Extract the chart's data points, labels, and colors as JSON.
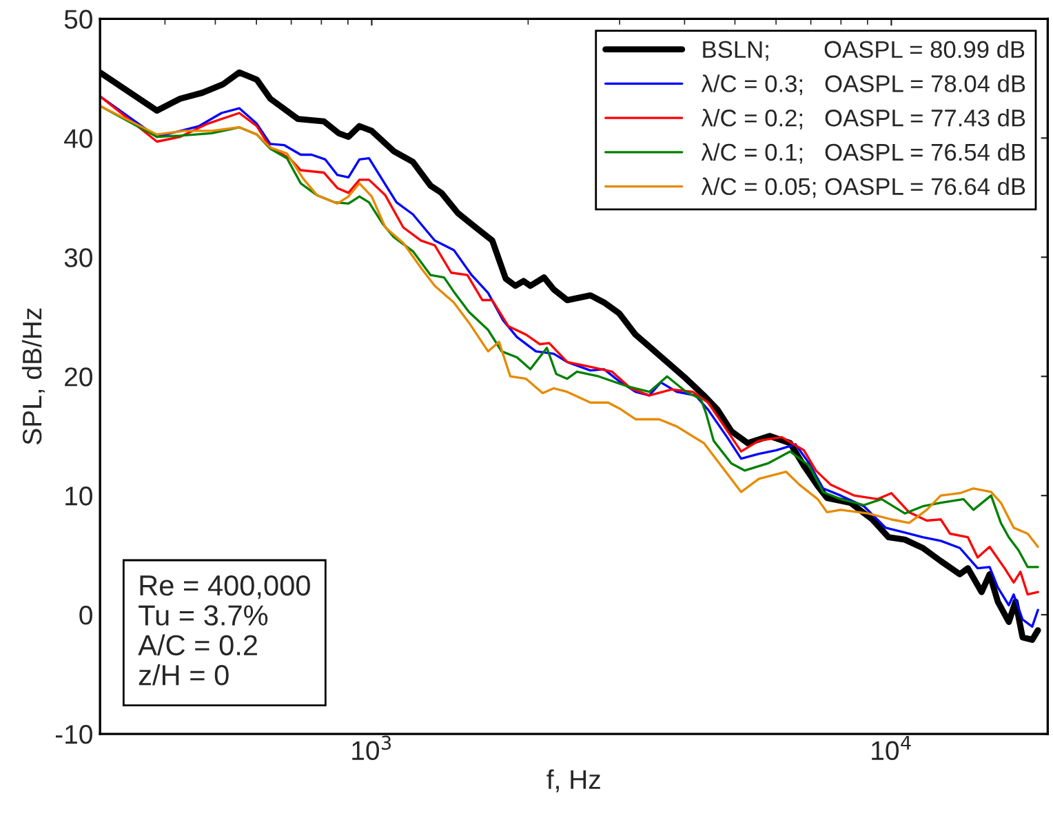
{
  "chart_data": {
    "type": "line",
    "xlabel": "f, Hz",
    "ylabel": "SPL, dB/Hz",
    "log": "x",
    "xlim": [
      300,
      20000
    ],
    "xticks": [
      {
        "value": 1000,
        "label": "10$^{3}$"
      },
      {
        "value": 10000,
        "label": "10$^{4}$"
      }
    ],
    "ylim": [
      -10,
      50
    ],
    "yticks": [
      -10,
      0,
      10,
      20,
      30,
      40,
      50
    ],
    "grid": false,
    "legend": "top right",
    "line_style": "solid",
    "marker": "none",
    "annotations": [
      "Re = 400,000\nTu = 3.7%\nA/C = 0.2\nz/H = 0"
    ],
    "series": [
      {
        "name": "BSLN;        OASPL = 80.99 dB",
        "color": "#000000",
        "x": [
          300,
          386,
          428,
          472,
          517,
          556,
          601,
          638,
          721,
          809,
          864,
          902,
          947,
          1000,
          1102,
          1200,
          1298,
          1362,
          1465,
          1585,
          1706,
          1811,
          1890,
          1960,
          2020,
          2146,
          2240,
          2378,
          2636,
          2800,
          2993,
          3219,
          3422,
          3702,
          4030,
          4358,
          4630,
          4921,
          5293,
          5834,
          6385,
          6788,
          7217,
          7520,
          8340,
          9190,
          9880,
          10620,
          11500,
          12450,
          13550,
          14040,
          14920,
          15460,
          16030,
          16830,
          17340,
          17890,
          18670,
          19150
        ],
        "values": [
          45.5,
          42.3,
          43.3,
          43.8,
          44.5,
          45.5,
          44.9,
          43.3,
          41.6,
          41.4,
          40.4,
          40.1,
          41.0,
          40.6,
          38.9,
          38.0,
          36.0,
          35.4,
          33.7,
          32.5,
          31.4,
          28.2,
          27.6,
          28.0,
          27.6,
          28.3,
          27.3,
          26.4,
          26.8,
          26.2,
          25.3,
          23.5,
          22.5,
          21.2,
          19.8,
          18.4,
          17.2,
          15.4,
          14.4,
          15.0,
          14.4,
          12.5,
          10.8,
          9.8,
          9.4,
          8.0,
          6.5,
          6.3,
          5.6,
          4.5,
          3.4,
          3.9,
          1.9,
          3.4,
          1.1,
          -0.6,
          1.1,
          -1.9,
          -2.1,
          -1.3
        ]
      },
      {
        "name": "λ/C = 0.3;   OASPL = 78.04 dB",
        "color": "#0000ff",
        "x": [
          300,
          386,
          465,
          514,
          556,
          601,
          638,
          679,
          730,
          766,
          814,
          859,
          902,
          947,
          988,
          1116,
          1200,
          1322,
          1439,
          1557,
          1675,
          1790,
          1903,
          2070,
          2240,
          2378,
          2636,
          2800,
          2993,
          3219,
          3422,
          3600,
          3864,
          4200,
          4440,
          4830,
          5140,
          5560,
          6010,
          6540,
          6950,
          7390,
          7990,
          8860,
          9750,
          10620,
          11500,
          12450,
          13550,
          14660,
          15460,
          16030,
          16830,
          17200,
          17890,
          18670,
          19150
        ],
        "values": [
          43.5,
          40.1,
          41.0,
          42.1,
          42.5,
          41.2,
          39.5,
          39.4,
          38.6,
          38.6,
          38.2,
          36.9,
          36.7,
          38.2,
          38.3,
          34.6,
          33.6,
          31.4,
          30.6,
          28.5,
          27.0,
          24.7,
          23.3,
          22.1,
          21.9,
          21.2,
          20.5,
          20.6,
          19.6,
          18.7,
          18.4,
          19.5,
          18.7,
          18.4,
          17.2,
          14.9,
          13.1,
          13.5,
          13.8,
          14.3,
          12.7,
          10.6,
          10.0,
          9.1,
          7.3,
          6.9,
          6.5,
          6.2,
          5.6,
          3.9,
          4.0,
          2.3,
          0.8,
          1.7,
          -0.4,
          -1.0,
          0.4
        ]
      },
      {
        "name": "λ/C = 0.2;   OASPL = 77.43 dB",
        "color": "#ff0000",
        "x": [
          300,
          386,
          428,
          483,
          556,
          601,
          638,
          695,
          730,
          809,
          859,
          902,
          947,
          988,
          1062,
          1150,
          1244,
          1322,
          1422,
          1528,
          1633,
          1706,
          1833,
          1982,
          2107,
          2195,
          2378,
          2636,
          2900,
          3150,
          3422,
          3780,
          4150,
          4440,
          4720,
          5140,
          5560,
          6150,
          6788,
          7160,
          7650,
          8490,
          9410,
          10000,
          10820,
          11700,
          12450,
          12970,
          14040,
          14660,
          15460,
          16520,
          17200,
          17720,
          18300,
          19150
        ],
        "values": [
          43.5,
          39.7,
          40.1,
          41.2,
          42.1,
          41.0,
          39.2,
          38.3,
          37.3,
          37.1,
          35.8,
          35.4,
          36.5,
          36.5,
          35.2,
          32.5,
          31.4,
          31.0,
          28.7,
          28.5,
          26.4,
          26.4,
          24.2,
          23.5,
          22.7,
          22.8,
          21.2,
          20.8,
          20.4,
          19.0,
          18.4,
          18.9,
          18.7,
          17.8,
          16.1,
          13.7,
          14.6,
          14.9,
          13.8,
          12.1,
          10.9,
          10.0,
          9.7,
          10.2,
          8.6,
          7.9,
          8.0,
          6.8,
          6.5,
          4.8,
          5.7,
          3.9,
          2.7,
          3.6,
          1.7,
          1.9
        ]
      },
      {
        "name": "λ/C = 0.1;   OASPL = 76.54 dB",
        "color": "#008000",
        "x": [
          300,
          386,
          428,
          492,
          556,
          601,
          638,
          687,
          730,
          785,
          849,
          902,
          947,
          988,
          1050,
          1102,
          1200,
          1298,
          1378,
          1439,
          1539,
          1675,
          1778,
          1903,
          2020,
          2173,
          2265,
          2378,
          2483,
          2734,
          3085,
          3422,
          3702,
          4030,
          4300,
          4400,
          4550,
          4921,
          5220,
          5790,
          6385,
          6950,
          7390,
          7990,
          8860,
          9580,
          10620,
          11500,
          12450,
          13770,
          14390,
          15560,
          16250,
          16830,
          17580,
          18300,
          19150
        ],
        "values": [
          42.7,
          40.1,
          40.2,
          40.4,
          40.9,
          40.3,
          39.1,
          38.3,
          36.2,
          35.2,
          34.6,
          34.5,
          35.1,
          34.6,
          32.8,
          31.7,
          30.5,
          28.5,
          28.3,
          27.1,
          25.4,
          23.9,
          22.1,
          21.6,
          20.6,
          22.4,
          20.2,
          19.8,
          20.4,
          20.0,
          19.2,
          18.7,
          20.0,
          18.7,
          18.1,
          16.9,
          14.6,
          12.7,
          12.1,
          12.7,
          13.7,
          12.5,
          10.3,
          9.7,
          9.2,
          9.7,
          8.5,
          9.1,
          9.4,
          9.7,
          8.8,
          10.0,
          7.7,
          6.5,
          5.4,
          4.0,
          4.0
        ]
      },
      {
        "name": "λ/C = 0.05; OASPL = 76.64 dB",
        "color": "#e68a00",
        "x": [
          300,
          386,
          436,
          492,
          556,
          601,
          638,
          687,
          738,
          785,
          859,
          902,
          947,
          1000,
          1062,
          1150,
          1244,
          1322,
          1439,
          1539,
          1675,
          1758,
          1848,
          1982,
          2133,
          2240,
          2378,
          2636,
          2851,
          3000,
          3219,
          3574,
          3864,
          4358,
          4780,
          5140,
          5560,
          6270,
          6660,
          7217,
          7520,
          7990,
          9020,
          10000,
          10820,
          11700,
          12450,
          13550,
          14390,
          15560,
          16250,
          17200,
          18300,
          19150
        ],
        "values": [
          42.7,
          40.3,
          40.6,
          40.6,
          40.9,
          40.3,
          39.2,
          38.7,
          36.6,
          35.2,
          34.5,
          35.1,
          36.2,
          35.1,
          32.5,
          31.2,
          29.1,
          27.6,
          26.2,
          24.5,
          22.1,
          22.9,
          20.0,
          19.8,
          18.6,
          19.0,
          18.7,
          17.8,
          17.8,
          17.3,
          16.4,
          16.4,
          15.8,
          14.4,
          12.1,
          10.3,
          11.4,
          12.0,
          10.9,
          9.7,
          8.6,
          8.8,
          8.5,
          8.0,
          7.7,
          8.8,
          10.0,
          10.2,
          10.6,
          10.3,
          9.4,
          7.3,
          6.8,
          5.7
        ]
      }
    ]
  }
}
